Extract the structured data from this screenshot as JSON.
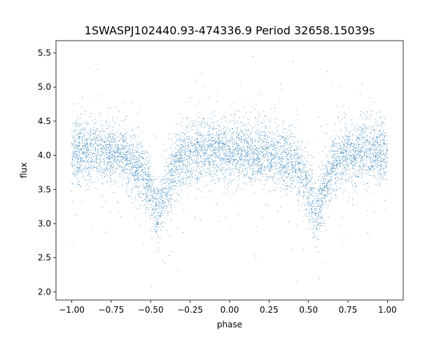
{
  "chart_data": {
    "type": "scatter",
    "title": "1SWASPJ102440.93-474336.9 Period 32658.15039s",
    "xlabel": "phase",
    "ylabel": "flux",
    "xlim": [
      -1.1,
      1.1
    ],
    "ylim": [
      1.88,
      5.68
    ],
    "x_ticks": [
      -1.0,
      -0.75,
      -0.5,
      -0.25,
      0.0,
      0.25,
      0.5,
      0.75,
      1.0
    ],
    "x_tick_labels": [
      "−1.00",
      "−0.75",
      "−0.50",
      "−0.25",
      "0.00",
      "0.25",
      "0.50",
      "0.75",
      "1.00"
    ],
    "y_ticks": [
      2.0,
      2.5,
      3.0,
      3.5,
      4.0,
      4.5,
      5.0,
      5.5
    ],
    "y_tick_labels": [
      "2.0",
      "2.5",
      "3.0",
      "3.5",
      "4.0",
      "4.5",
      "5.0",
      "5.5"
    ],
    "grid": false,
    "legend": "none",
    "marker_color": "#1f77b4",
    "baseline_flux": 4.0,
    "scatter_sigma": 0.22,
    "eclipses": [
      {
        "phase": -0.45,
        "min_flux": 3.15
      },
      {
        "phase": 0.55,
        "min_flux": 3.15
      }
    ],
    "series": [
      {
        "points": [
          [
            -1.0,
            4.02
          ],
          [
            -0.95,
            4.05
          ],
          [
            -0.9,
            4.06
          ],
          [
            -0.85,
            4.08
          ],
          [
            -0.8,
            4.08
          ],
          [
            -0.75,
            4.05
          ],
          [
            -0.7,
            4.02
          ],
          [
            -0.65,
            3.98
          ],
          [
            -0.6,
            3.9
          ],
          [
            -0.55,
            3.75
          ],
          [
            -0.5,
            3.5
          ],
          [
            -0.47,
            3.25
          ],
          [
            -0.45,
            3.15
          ],
          [
            -0.43,
            3.3
          ],
          [
            -0.4,
            3.55
          ],
          [
            -0.35,
            3.8
          ],
          [
            -0.3,
            3.95
          ],
          [
            -0.25,
            4.02
          ],
          [
            -0.2,
            4.05
          ],
          [
            -0.15,
            4.05
          ],
          [
            -0.1,
            4.06
          ],
          [
            -0.05,
            4.07
          ],
          [
            0.0,
            4.06
          ],
          [
            0.05,
            4.04
          ],
          [
            0.1,
            4.02
          ],
          [
            0.15,
            4.02
          ],
          [
            0.2,
            4.03
          ],
          [
            0.25,
            4.02
          ],
          [
            0.3,
            4.0
          ],
          [
            0.35,
            3.97
          ],
          [
            0.4,
            3.9
          ],
          [
            0.45,
            3.75
          ],
          [
            0.5,
            3.5
          ],
          [
            0.53,
            3.25
          ],
          [
            0.55,
            3.15
          ],
          [
            0.57,
            3.3
          ],
          [
            0.6,
            3.55
          ],
          [
            0.65,
            3.8
          ],
          [
            0.7,
            3.95
          ],
          [
            0.75,
            4.02
          ],
          [
            0.8,
            4.05
          ],
          [
            0.85,
            4.06
          ],
          [
            0.9,
            4.05
          ],
          [
            0.95,
            4.05
          ],
          [
            1.0,
            4.04
          ]
        ],
        "approx_count": 9000
      }
    ]
  }
}
